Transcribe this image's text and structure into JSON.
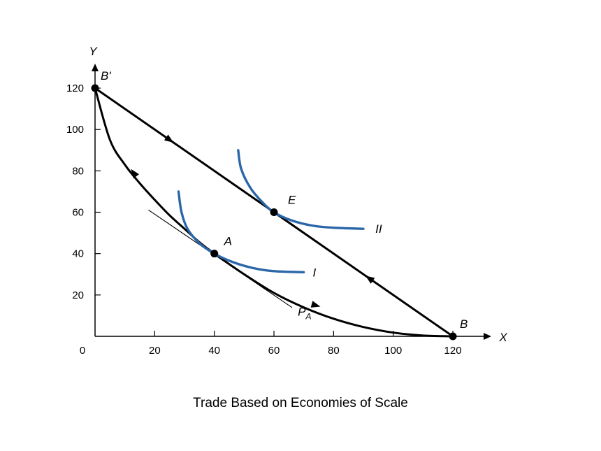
{
  "chart_data": {
    "type": "line",
    "title": "",
    "xlabel": "X",
    "ylabel": "Y",
    "xlim": [
      0,
      130
    ],
    "ylim": [
      0,
      130
    ],
    "x_ticks": [
      0,
      20,
      40,
      60,
      80,
      100,
      120
    ],
    "y_ticks": [
      20,
      40,
      60,
      80,
      100,
      120
    ],
    "grid": false,
    "series": [
      {
        "name": "",
        "kind": "production-frontier",
        "color": "#000000",
        "points": [
          [
            0,
            120
          ],
          [
            5,
            95
          ],
          [
            10,
            83
          ],
          [
            15,
            74
          ],
          [
            20,
            66
          ],
          [
            25,
            58.5
          ],
          [
            30,
            52
          ],
          [
            35,
            45.5
          ],
          [
            40,
            40
          ],
          [
            50,
            30
          ],
          [
            60,
            21
          ],
          [
            70,
            14
          ],
          [
            80,
            8.5
          ],
          [
            90,
            4.5
          ],
          [
            100,
            1.8
          ],
          [
            110,
            0.4
          ],
          [
            120,
            0
          ]
        ]
      },
      {
        "name": "",
        "kind": "trade-line",
        "color": "#000000",
        "points": [
          [
            0,
            120
          ],
          [
            120,
            0
          ]
        ]
      },
      {
        "name": "",
        "kind": "price-line",
        "color": "#000000",
        "points": [
          [
            18,
            61
          ],
          [
            66,
            14
          ]
        ]
      },
      {
        "name": "",
        "kind": "indifference-curve",
        "color": "#2b66a8",
        "points": [
          [
            28,
            70
          ],
          [
            29,
            60
          ],
          [
            31,
            52
          ],
          [
            35,
            45
          ],
          [
            40,
            40
          ],
          [
            46,
            36
          ],
          [
            53,
            33
          ],
          [
            60,
            31.5
          ],
          [
            70,
            31
          ]
        ]
      },
      {
        "name": "",
        "kind": "indifference-curve",
        "color": "#2b66a8",
        "points": [
          [
            48,
            90
          ],
          [
            49,
            81
          ],
          [
            52,
            72
          ],
          [
            56,
            65
          ],
          [
            60,
            60
          ],
          [
            66,
            56
          ],
          [
            73,
            53.5
          ],
          [
            80,
            52.5
          ],
          [
            90,
            52
          ]
        ]
      }
    ],
    "points": [
      {
        "label": "B'",
        "x": 0,
        "y": 120
      },
      {
        "label": "E",
        "x": 60,
        "y": 60
      },
      {
        "label": "A",
        "x": 40,
        "y": 40
      },
      {
        "label": "B",
        "x": 120,
        "y": 0
      }
    ],
    "curve_labels": [
      {
        "label": "II",
        "x": 94,
        "y": 52
      },
      {
        "label": "I",
        "x": 73,
        "y": 31
      },
      {
        "label": "P",
        "subscript": "A",
        "x": 68,
        "y": 12
      }
    ],
    "caption": "Trade Based on Economies of Scale"
  }
}
